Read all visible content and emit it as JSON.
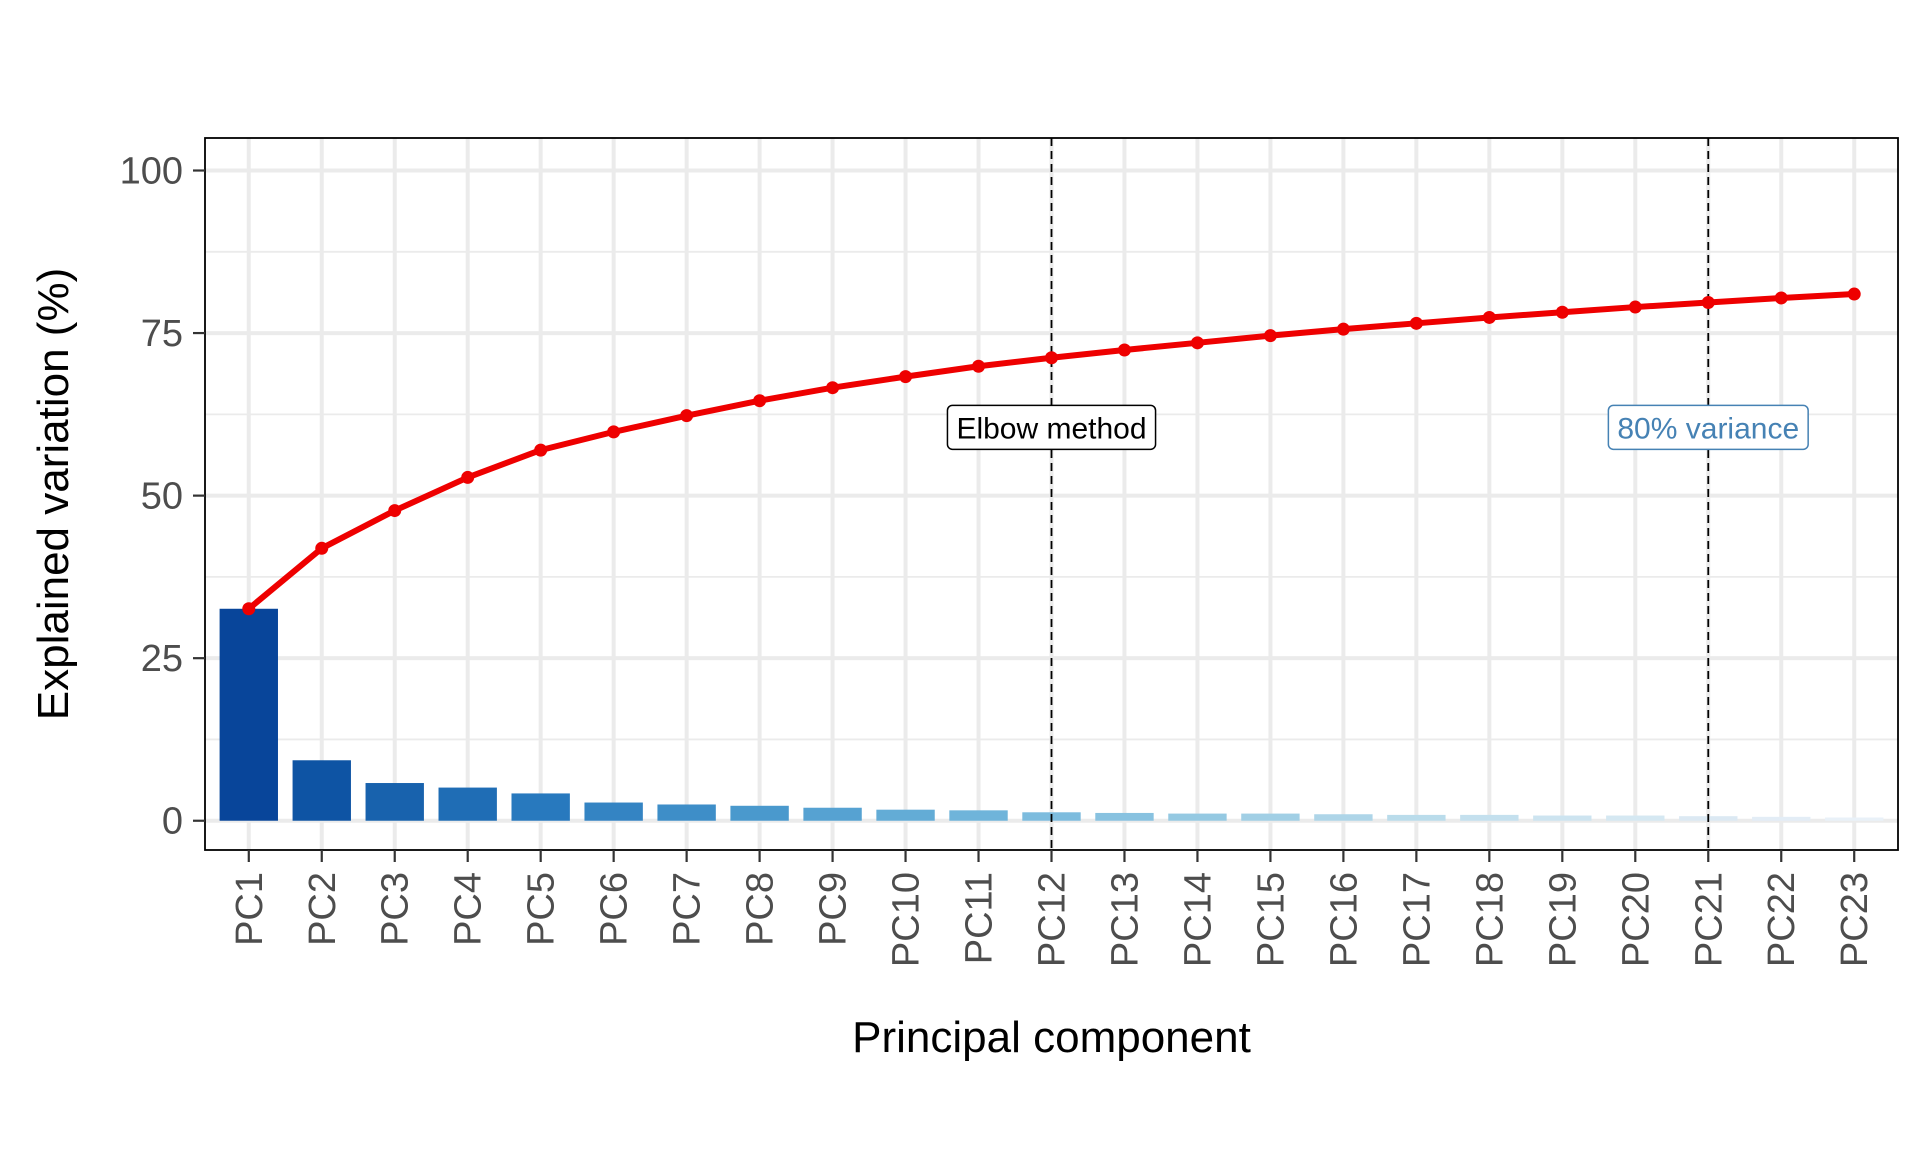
{
  "chart_data": {
    "type": "bar",
    "xlabel": "Principal component",
    "ylabel": "Explained variation (%)",
    "ylim": [
      -4.5,
      105
    ],
    "yticks": [
      0,
      25,
      50,
      75,
      100
    ],
    "grid": true,
    "categories": [
      "PC1",
      "PC2",
      "PC3",
      "PC4",
      "PC5",
      "PC6",
      "PC7",
      "PC8",
      "PC9",
      "PC10",
      "PC11",
      "PC12",
      "PC13",
      "PC14",
      "PC15",
      "PC16",
      "PC17",
      "PC18",
      "PC19",
      "PC20",
      "PC21",
      "PC22",
      "PC23"
    ],
    "series": [
      {
        "type": "bar",
        "values": [
          32.6,
          9.3,
          5.8,
          5.1,
          4.2,
          2.8,
          2.5,
          2.3,
          2.0,
          1.7,
          1.6,
          1.3,
          1.2,
          1.1,
          1.1,
          1.0,
          0.9,
          0.9,
          0.8,
          0.8,
          0.7,
          0.6,
          0.5
        ],
        "colors": [
          "#08459a",
          "#0e54a4",
          "#1862ad",
          "#1f6db5",
          "#2879be",
          "#3484c3",
          "#3e8ec8",
          "#4a99cd",
          "#56a2d2",
          "#63acd6",
          "#6fb4da",
          "#7dbcde",
          "#88c2e0",
          "#95c9e2",
          "#a1cfe5",
          "#aed5e8",
          "#badceb",
          "#c4e0ee",
          "#cde4f0",
          "#d5e8f2",
          "#dce9f3",
          "#e3edf6",
          "#e9f1f8"
        ]
      },
      {
        "type": "line",
        "color": "#ee0000",
        "values": [
          32.6,
          41.9,
          47.7,
          52.8,
          57.0,
          59.8,
          62.3,
          64.6,
          66.6,
          68.3,
          69.9,
          71.2,
          72.4,
          73.5,
          74.6,
          75.6,
          76.5,
          77.4,
          78.2,
          79.0,
          79.7,
          80.4,
          81.0
        ]
      }
    ],
    "annotations": [
      {
        "at": "PC12",
        "label": "Elbow method",
        "color": "#000000",
        "y": 60.5
      },
      {
        "at": "PC21",
        "label": "80% variance",
        "color": "#4682b4",
        "y": 60.5
      }
    ]
  }
}
